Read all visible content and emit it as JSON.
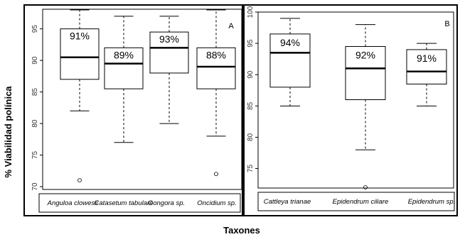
{
  "ylabel": "% Viabilidad polínica",
  "xlabel": "Taxones",
  "chart_data": [
    {
      "type": "box",
      "panel": "A",
      "ylim": [
        70,
        98
      ],
      "yticks": [
        70,
        75,
        80,
        85,
        90,
        95
      ],
      "categories": [
        "Anguloa clowesii",
        "Catasetum tabulare",
        "Gongora sp.",
        "Oncidium sp."
      ],
      "labels": [
        "91%",
        "89%",
        "93%",
        "88%"
      ],
      "boxes": [
        {
          "whislo": 82,
          "q1": 87,
          "med": 90.5,
          "q3": 95,
          "whishi": 98,
          "fliers": [
            71
          ]
        },
        {
          "whislo": 77,
          "q1": 85.5,
          "med": 89.5,
          "q3": 92,
          "whishi": 97,
          "fliers": []
        },
        {
          "whislo": 80,
          "q1": 88,
          "med": 92,
          "q3": 94.5,
          "whishi": 97,
          "fliers": []
        },
        {
          "whislo": 78,
          "q1": 85.5,
          "med": 89,
          "q3": 92,
          "whishi": 98,
          "fliers": [
            72
          ]
        }
      ]
    },
    {
      "type": "box",
      "panel": "B",
      "ylim": [
        72,
        100
      ],
      "yticks": [
        75,
        80,
        85,
        90,
        95,
        100
      ],
      "categories": [
        "Cattleya trianae",
        "Epidendrum ciliare",
        "Epidendrum sp."
      ],
      "labels": [
        "94%",
        "92%",
        "91%"
      ],
      "boxes": [
        {
          "whislo": 85,
          "q1": 88,
          "med": 93.5,
          "q3": 96.5,
          "whishi": 99,
          "fliers": []
        },
        {
          "whislo": 78,
          "q1": 86,
          "med": 91,
          "q3": 94.5,
          "whishi": 98,
          "fliers": [
            72
          ]
        },
        {
          "whislo": 85,
          "q1": 88.5,
          "med": 90.5,
          "q3": 94,
          "whishi": 95,
          "fliers": []
        }
      ]
    }
  ]
}
